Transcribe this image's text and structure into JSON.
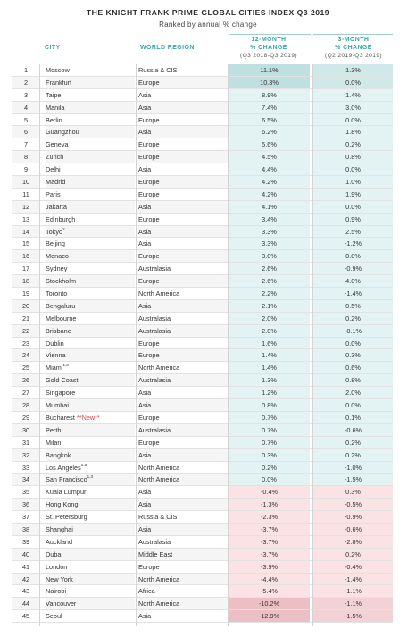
{
  "title": "THE KNIGHT FRANK PRIME GLOBAL CITIES INDEX Q3 2019",
  "subtitle": "Ranked by annual % change",
  "headers": {
    "city": "CITY",
    "region": "WORLD REGION",
    "change12": "12-MONTH",
    "change12_line2": "% CHANGE",
    "change12_period": "(Q3 2018-Q3 2019)",
    "change3": "3-MONTH",
    "change3_line2": "% CHANGE",
    "change3_period": "(Q2 2019-Q3 2019)"
  },
  "colors": {
    "header_accent": "#3aa6a6",
    "positive_fill": "#e3f3f3",
    "negative_fill": "#fbe2e4",
    "new_tag": "#e0474c"
  },
  "rows": [
    {
      "rank": "1",
      "city": "Moscow",
      "sup": "",
      "tag": "",
      "region": "Russia & CIS",
      "c12": "11.1%",
      "c3": "1.3%"
    },
    {
      "rank": "2",
      "city": "Frankfurt",
      "sup": "",
      "tag": "",
      "region": "Europe",
      "c12": "10.3%",
      "c3": "0.0%"
    },
    {
      "rank": "3",
      "city": "Taipei",
      "sup": "",
      "tag": "",
      "region": "Asia",
      "c12": "8.9%",
      "c3": "1.4%"
    },
    {
      "rank": "4",
      "city": "Manila",
      "sup": "",
      "tag": "",
      "region": "Asia",
      "c12": "7.4%",
      "c3": "3.0%"
    },
    {
      "rank": "5",
      "city": "Berlin",
      "sup": "",
      "tag": "",
      "region": "Europe",
      "c12": "6.5%",
      "c3": "0.0%"
    },
    {
      "rank": "6",
      "city": "Guangzhou",
      "sup": "",
      "tag": "",
      "region": "Asia",
      "c12": "6.2%",
      "c3": "1.8%"
    },
    {
      "rank": "7",
      "city": "Geneva",
      "sup": "",
      "tag": "",
      "region": "Europe",
      "c12": "5.6%",
      "c3": "0.2%"
    },
    {
      "rank": "8",
      "city": "Zurich",
      "sup": "",
      "tag": "",
      "region": "Europe",
      "c12": "4.5%",
      "c3": "0.8%"
    },
    {
      "rank": "9",
      "city": "Delhi",
      "sup": "",
      "tag": "",
      "region": "Asia",
      "c12": "4.4%",
      "c3": "0.0%"
    },
    {
      "rank": "10",
      "city": "Madrid",
      "sup": "",
      "tag": "",
      "region": "Europe",
      "c12": "4.2%",
      "c3": "1.0%"
    },
    {
      "rank": "11",
      "city": "Paris",
      "sup": "",
      "tag": "",
      "region": "Europe",
      "c12": "4.2%",
      "c3": "1.9%"
    },
    {
      "rank": "12",
      "city": "Jakarta",
      "sup": "",
      "tag": "",
      "region": "Asia",
      "c12": "4.1%",
      "c3": "0.0%"
    },
    {
      "rank": "13",
      "city": "Edinburgh",
      "sup": "",
      "tag": "",
      "region": "Europe",
      "c12": "3.4%",
      "c3": "0.9%"
    },
    {
      "rank": "14",
      "city": "Tokyo",
      "sup": "2",
      "tag": "",
      "region": "Asia",
      "c12": "3.3%",
      "c3": "2.5%"
    },
    {
      "rank": "15",
      "city": "Beijing",
      "sup": "",
      "tag": "",
      "region": "Asia",
      "c12": "3.3%",
      "c3": "-1.2%"
    },
    {
      "rank": "16",
      "city": "Monaco",
      "sup": "",
      "tag": "",
      "region": "Europe",
      "c12": "3.0%",
      "c3": "0.0%"
    },
    {
      "rank": "17",
      "city": "Sydney",
      "sup": "",
      "tag": "",
      "region": "Australasia",
      "c12": "2.6%",
      "c3": "-0.9%"
    },
    {
      "rank": "18",
      "city": "Stockholm",
      "sup": "",
      "tag": "",
      "region": "Europe",
      "c12": "2.6%",
      "c3": "4.0%"
    },
    {
      "rank": "19",
      "city": "Toronto",
      "sup": "",
      "tag": "",
      "region": "North America",
      "c12": "2.2%",
      "c3": "-1.4%"
    },
    {
      "rank": "20",
      "city": "Bengaluru",
      "sup": "",
      "tag": "",
      "region": "Asia",
      "c12": "2.1%",
      "c3": "0.5%"
    },
    {
      "rank": "21",
      "city": "Melbourne",
      "sup": "",
      "tag": "",
      "region": "Australasia",
      "c12": "2.0%",
      "c3": "0.2%"
    },
    {
      "rank": "22",
      "city": "Brisbane",
      "sup": "",
      "tag": "",
      "region": "Australasia",
      "c12": "2.0%",
      "c3": "-0.1%"
    },
    {
      "rank": "23",
      "city": "Dublin",
      "sup": "",
      "tag": "",
      "region": "Europe",
      "c12": "1.6%",
      "c3": "0.0%"
    },
    {
      "rank": "24",
      "city": "Vienna",
      "sup": "",
      "tag": "",
      "region": "Europe",
      "c12": "1.4%",
      "c3": "0.3%"
    },
    {
      "rank": "25",
      "city": "Miami",
      "sup": "1,3",
      "tag": "",
      "region": "North America",
      "c12": "1.4%",
      "c3": "0.6%"
    },
    {
      "rank": "26",
      "city": "Gold Coast",
      "sup": "",
      "tag": "",
      "region": "Australasia",
      "c12": "1.3%",
      "c3": "0.8%"
    },
    {
      "rank": "27",
      "city": "Singapore",
      "sup": "",
      "tag": "",
      "region": "Asia",
      "c12": "1.2%",
      "c3": "2.0%"
    },
    {
      "rank": "28",
      "city": "Mumbai",
      "sup": "",
      "tag": "",
      "region": "Asia",
      "c12": "0.8%",
      "c3": "0.0%"
    },
    {
      "rank": "29",
      "city": "Bucharest",
      "sup": "",
      "tag": "**New**",
      "region": "Europe",
      "c12": "0.7%",
      "c3": "0.1%"
    },
    {
      "rank": "30",
      "city": "Perth",
      "sup": "",
      "tag": "",
      "region": "Australasia",
      "c12": "0.7%",
      "c3": "-0.6%"
    },
    {
      "rank": "31",
      "city": "Milan",
      "sup": "",
      "tag": "",
      "region": "Europe",
      "c12": "0.7%",
      "c3": "0.2%"
    },
    {
      "rank": "32",
      "city": "Bangkok",
      "sup": "",
      "tag": "",
      "region": "Asia",
      "c12": "0.3%",
      "c3": "0.2%"
    },
    {
      "rank": "33",
      "city": "Los Angeles",
      "sup": "1,3",
      "tag": "",
      "region": "North America",
      "c12": "0.2%",
      "c3": "-1.0%"
    },
    {
      "rank": "34",
      "city": "San Francisco",
      "sup": "1,3",
      "tag": "",
      "region": "North America",
      "c12": "0.0%",
      "c3": "-1.5%"
    },
    {
      "rank": "35",
      "city": "Kuala Lumpur",
      "sup": "",
      "tag": "",
      "region": "Asia",
      "c12": "-0.4%",
      "c3": "0.3%"
    },
    {
      "rank": "36",
      "city": "Hong Kong",
      "sup": "",
      "tag": "",
      "region": "Asia",
      "c12": "-1.3%",
      "c3": "-0.5%"
    },
    {
      "rank": "37",
      "city": "St. Petersburg",
      "sup": "",
      "tag": "",
      "region": "Russia & CIS",
      "c12": "-2.3%",
      "c3": "-0.9%"
    },
    {
      "rank": "38",
      "city": "Shanghai",
      "sup": "",
      "tag": "",
      "region": "Asia",
      "c12": "-3.7%",
      "c3": "-0.6%"
    },
    {
      "rank": "39",
      "city": "Auckland",
      "sup": "",
      "tag": "",
      "region": "Australasia",
      "c12": "-3.7%",
      "c3": "-2.8%"
    },
    {
      "rank": "40",
      "city": "Dubai",
      "sup": "",
      "tag": "",
      "region": "Middle East",
      "c12": "-3.7%",
      "c3": "0.2%"
    },
    {
      "rank": "41",
      "city": "London",
      "sup": "",
      "tag": "",
      "region": "Europe",
      "c12": "-3.9%",
      "c3": "-0.4%"
    },
    {
      "rank": "42",
      "city": "New York",
      "sup": "",
      "tag": "",
      "region": "North America",
      "c12": "-4.4%",
      "c3": "-1.4%"
    },
    {
      "rank": "43",
      "city": "Nairobi",
      "sup": "",
      "tag": "",
      "region": "Africa",
      "c12": "-5.4%",
      "c3": "-1.1%"
    },
    {
      "rank": "44",
      "city": "Vancouver",
      "sup": "",
      "tag": "",
      "region": "North America",
      "c12": "-10.2%",
      "c3": "-1.1%"
    },
    {
      "rank": "45",
      "city": "Seoul",
      "sup": "",
      "tag": "",
      "region": "Asia",
      "c12": "-12.9%",
      "c3": "-1.5%"
    }
  ]
}
